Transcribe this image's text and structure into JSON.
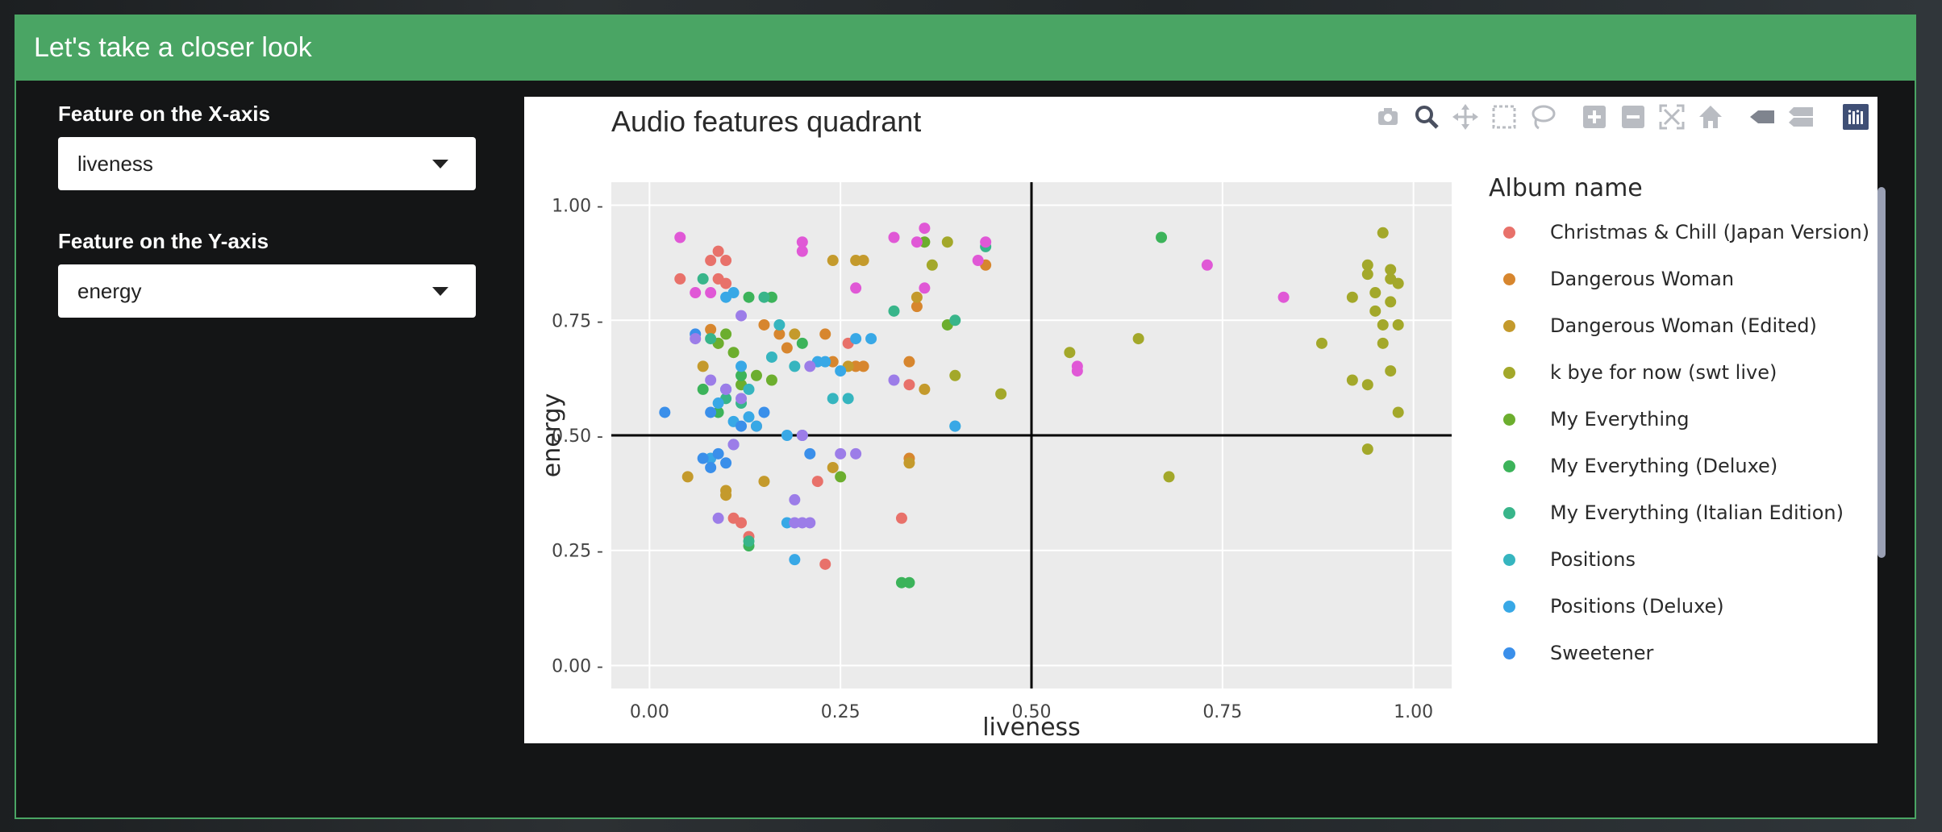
{
  "modal": {
    "title": "Let's take a closer look"
  },
  "controls": {
    "x_label": "Feature on the X-axis",
    "x_value": "liveness",
    "y_label": "Feature on the Y-axis",
    "y_value": "energy"
  },
  "modebar_icons": [
    "camera-icon",
    "zoom-icon",
    "pan-icon",
    "box-select-icon",
    "lasso-icon",
    "zoom-in-icon",
    "zoom-out-icon",
    "autoscale-icon",
    "home-icon",
    "hover-closest-icon",
    "hover-compare-icon",
    "plotly-logo-icon"
  ],
  "chart_data": {
    "type": "scatter",
    "title": "Audio features quadrant",
    "xlabel": "liveness",
    "ylabel": "energy",
    "xlim": [
      -0.05,
      1.05
    ],
    "ylim": [
      -0.05,
      1.05
    ],
    "xticks": [
      "0.00",
      "0.25",
      "0.50",
      "0.75",
      "1.00"
    ],
    "yticks": [
      "0.00",
      "0.25",
      "0.50",
      "0.75",
      "1.00"
    ],
    "grid": true,
    "reference_lines": {
      "x": 0.5,
      "y": 0.5
    },
    "legend": {
      "title": "Album name",
      "placement": "right"
    },
    "series": [
      {
        "name": "Christmas & Chill (Japan Version)",
        "color": "#e8716a",
        "points": [
          [
            0.04,
            0.84
          ],
          [
            0.08,
            0.88
          ],
          [
            0.09,
            0.9
          ],
          [
            0.1,
            0.88
          ],
          [
            0.09,
            0.84
          ],
          [
            0.1,
            0.83
          ],
          [
            0.11,
            0.32
          ],
          [
            0.12,
            0.31
          ],
          [
            0.13,
            0.28
          ],
          [
            0.22,
            0.4
          ],
          [
            0.23,
            0.22
          ],
          [
            0.26,
            0.7
          ],
          [
            0.33,
            0.32
          ],
          [
            0.34,
            0.61
          ],
          [
            0.14,
            0.52
          ]
        ]
      },
      {
        "name": "Dangerous Woman",
        "color": "#d7862e",
        "points": [
          [
            0.08,
            0.73
          ],
          [
            0.09,
            0.7
          ],
          [
            0.15,
            0.74
          ],
          [
            0.18,
            0.69
          ],
          [
            0.23,
            0.72
          ],
          [
            0.24,
            0.66
          ],
          [
            0.27,
            0.65
          ],
          [
            0.28,
            0.65
          ],
          [
            0.34,
            0.66
          ],
          [
            0.35,
            0.78
          ],
          [
            0.44,
            0.87
          ],
          [
            0.34,
            0.45
          ],
          [
            0.17,
            0.72
          ]
        ]
      },
      {
        "name": "Dangerous Woman (Edited)",
        "color": "#c49a2c",
        "points": [
          [
            0.05,
            0.41
          ],
          [
            0.07,
            0.65
          ],
          [
            0.1,
            0.37
          ],
          [
            0.1,
            0.38
          ],
          [
            0.15,
            0.4
          ],
          [
            0.19,
            0.72
          ],
          [
            0.24,
            0.88
          ],
          [
            0.27,
            0.88
          ],
          [
            0.28,
            0.88
          ],
          [
            0.34,
            0.44
          ],
          [
            0.35,
            0.8
          ],
          [
            0.36,
            0.6
          ],
          [
            0.24,
            0.43
          ],
          [
            0.26,
            0.65
          ]
        ]
      },
      {
        "name": "k bye for now (swt live)",
        "color": "#a3a82a",
        "points": [
          [
            0.37,
            0.87
          ],
          [
            0.39,
            0.92
          ],
          [
            0.4,
            0.63
          ],
          [
            0.46,
            0.59
          ],
          [
            0.55,
            0.68
          ],
          [
            0.64,
            0.71
          ],
          [
            0.68,
            0.41
          ],
          [
            0.88,
            0.7
          ],
          [
            0.92,
            0.8
          ],
          [
            0.92,
            0.62
          ],
          [
            0.94,
            0.85
          ],
          [
            0.94,
            0.87
          ],
          [
            0.94,
            0.61
          ],
          [
            0.95,
            0.81
          ],
          [
            0.95,
            0.77
          ],
          [
            0.96,
            0.74
          ],
          [
            0.96,
            0.7
          ],
          [
            0.96,
            0.94
          ],
          [
            0.97,
            0.79
          ],
          [
            0.97,
            0.86
          ],
          [
            0.97,
            0.64
          ],
          [
            0.97,
            0.84
          ],
          [
            0.98,
            0.83
          ],
          [
            0.98,
            0.74
          ],
          [
            0.98,
            0.55
          ],
          [
            0.94,
            0.47
          ]
        ]
      },
      {
        "name": "My Everything",
        "color": "#6cae2e",
        "points": [
          [
            0.09,
            0.7
          ],
          [
            0.1,
            0.72
          ],
          [
            0.11,
            0.68
          ],
          [
            0.12,
            0.61
          ],
          [
            0.14,
            0.63
          ],
          [
            0.16,
            0.62
          ],
          [
            0.25,
            0.41
          ],
          [
            0.39,
            0.74
          ],
          [
            0.36,
            0.92
          ]
        ]
      },
      {
        "name": "My Everything (Deluxe)",
        "color": "#3cb35a",
        "points": [
          [
            0.07,
            0.6
          ],
          [
            0.09,
            0.55
          ],
          [
            0.12,
            0.63
          ],
          [
            0.13,
            0.8
          ],
          [
            0.16,
            0.8
          ],
          [
            0.2,
            0.7
          ],
          [
            0.33,
            0.18
          ],
          [
            0.34,
            0.18
          ],
          [
            0.67,
            0.93
          ],
          [
            0.13,
            0.26
          ]
        ]
      },
      {
        "name": "My Everything (Italian Edition)",
        "color": "#38b58a",
        "points": [
          [
            0.07,
            0.84
          ],
          [
            0.08,
            0.71
          ],
          [
            0.1,
            0.58
          ],
          [
            0.12,
            0.57
          ],
          [
            0.15,
            0.8
          ],
          [
            0.32,
            0.77
          ],
          [
            0.4,
            0.75
          ],
          [
            0.44,
            0.91
          ],
          [
            0.13,
            0.27
          ]
        ]
      },
      {
        "name": "Positions",
        "color": "#36b5bf",
        "points": [
          [
            0.1,
            0.6
          ],
          [
            0.13,
            0.6
          ],
          [
            0.16,
            0.67
          ],
          [
            0.17,
            0.74
          ],
          [
            0.19,
            0.65
          ],
          [
            0.24,
            0.58
          ],
          [
            0.26,
            0.58
          ],
          [
            0.4,
            0.52
          ]
        ]
      },
      {
        "name": "Positions (Deluxe)",
        "color": "#38a8e6",
        "points": [
          [
            0.08,
            0.45
          ],
          [
            0.09,
            0.57
          ],
          [
            0.1,
            0.6
          ],
          [
            0.11,
            0.53
          ],
          [
            0.12,
            0.65
          ],
          [
            0.13,
            0.54
          ],
          [
            0.14,
            0.52
          ],
          [
            0.18,
            0.5
          ],
          [
            0.18,
            0.31
          ],
          [
            0.19,
            0.23
          ],
          [
            0.22,
            0.66
          ],
          [
            0.23,
            0.66
          ],
          [
            0.25,
            0.64
          ],
          [
            0.27,
            0.71
          ],
          [
            0.29,
            0.71
          ],
          [
            0.4,
            0.52
          ],
          [
            0.11,
            0.81
          ],
          [
            0.1,
            0.8
          ]
        ]
      },
      {
        "name": "Sweetener",
        "color": "#3a8fea",
        "points": [
          [
            0.02,
            0.55
          ],
          [
            0.07,
            0.45
          ],
          [
            0.08,
            0.43
          ],
          [
            0.09,
            0.46
          ],
          [
            0.1,
            0.44
          ],
          [
            0.11,
            0.48
          ],
          [
            0.12,
            0.52
          ],
          [
            0.15,
            0.55
          ],
          [
            0.2,
            0.5
          ],
          [
            0.21,
            0.46
          ],
          [
            0.06,
            0.72
          ],
          [
            0.08,
            0.55
          ]
        ]
      },
      {
        "name": "",
        "color": "#9c7de8",
        "points": [
          [
            0.06,
            0.71
          ],
          [
            0.08,
            0.62
          ],
          [
            0.09,
            0.32
          ],
          [
            0.1,
            0.6
          ],
          [
            0.11,
            0.48
          ],
          [
            0.12,
            0.76
          ],
          [
            0.19,
            0.36
          ],
          [
            0.19,
            0.31
          ],
          [
            0.2,
            0.31
          ],
          [
            0.21,
            0.65
          ],
          [
            0.21,
            0.31
          ],
          [
            0.25,
            0.46
          ],
          [
            0.27,
            0.46
          ],
          [
            0.32,
            0.62
          ],
          [
            0.12,
            0.58
          ],
          [
            0.2,
            0.5
          ]
        ]
      },
      {
        "name": "",
        "color": "#e058d6",
        "points": [
          [
            0.04,
            0.93
          ],
          [
            0.06,
            0.81
          ],
          [
            0.08,
            0.81
          ],
          [
            0.2,
            0.9
          ],
          [
            0.2,
            0.92
          ],
          [
            0.32,
            0.93
          ],
          [
            0.35,
            0.92
          ],
          [
            0.36,
            0.82
          ],
          [
            0.36,
            0.95
          ],
          [
            0.43,
            0.88
          ],
          [
            0.44,
            0.92
          ],
          [
            0.73,
            0.87
          ],
          [
            0.83,
            0.8
          ],
          [
            0.56,
            0.64
          ],
          [
            0.56,
            0.65
          ],
          [
            0.27,
            0.82
          ]
        ]
      }
    ]
  }
}
